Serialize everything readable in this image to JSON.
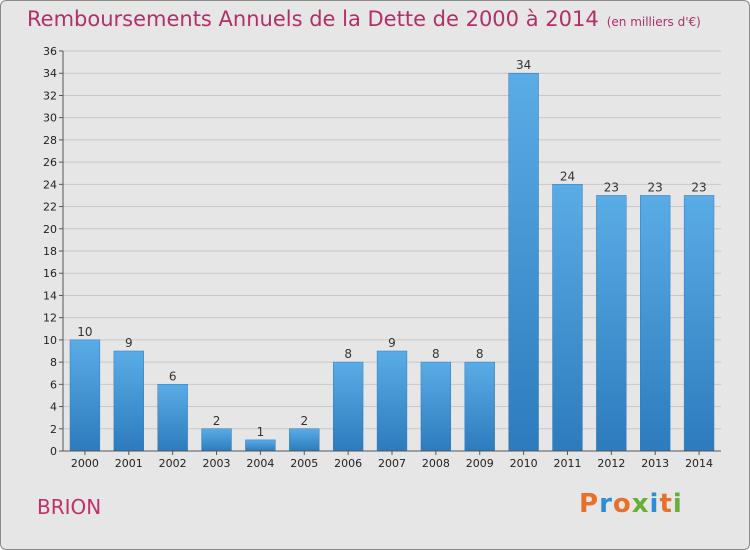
{
  "header": {
    "title": "Remboursements Annuels de la Dette de 2000 à 2014",
    "unit": "(en milliers d'€)"
  },
  "footer": {
    "commune": "BRION",
    "brand": "Proxiti"
  },
  "colors": {
    "title": "#b0306a",
    "bar_light": "#5aace6",
    "bar_dark": "#2d7bbd",
    "brand_letters": [
      "#e8702a",
      "#2a8fd6",
      "#e8702a",
      "#66b032",
      "#2a8fd6",
      "#e8702a",
      "#66b032"
    ]
  },
  "chart_data": {
    "type": "bar",
    "categories": [
      "2000",
      "2001",
      "2002",
      "2003",
      "2004",
      "2005",
      "2006",
      "2007",
      "2008",
      "2009",
      "2010",
      "2011",
      "2012",
      "2013",
      "2014"
    ],
    "values": [
      10,
      9,
      6,
      2,
      1,
      2,
      8,
      9,
      8,
      8,
      34,
      24,
      23,
      23,
      23
    ],
    "title": "Remboursements Annuels de la Dette de 2000 à 2014",
    "xlabel": "",
    "ylabel": "",
    "ylim": [
      0,
      36
    ],
    "yticks": [
      0,
      2,
      4,
      6,
      8,
      10,
      12,
      14,
      16,
      18,
      20,
      22,
      24,
      26,
      28,
      30,
      32,
      34,
      36
    ],
    "grid": true,
    "legend": "none"
  }
}
